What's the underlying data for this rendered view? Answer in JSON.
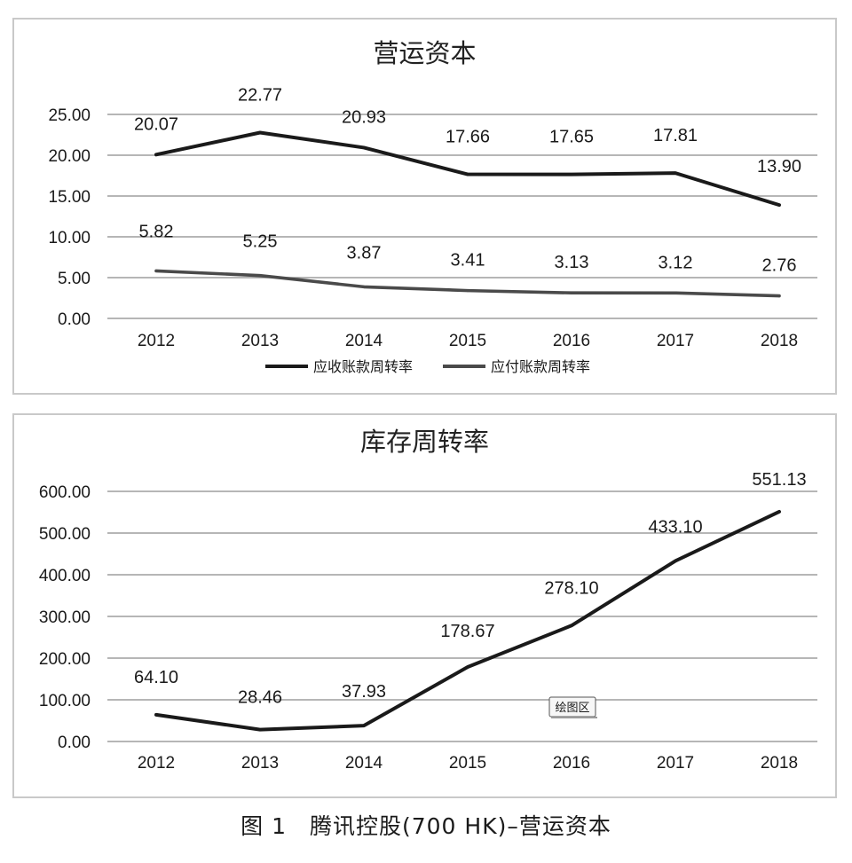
{
  "chart_data": [
    {
      "type": "line",
      "title": "营运资本",
      "categories": [
        "2012",
        "2013",
        "2014",
        "2015",
        "2016",
        "2017",
        "2018"
      ],
      "ylim": [
        0,
        25
      ],
      "yticks": [
        "0.00",
        "5.00",
        "10.00",
        "15.00",
        "20.00",
        "25.00"
      ],
      "grid": true,
      "legend_position": "bottom",
      "series": [
        {
          "name": "应收账款周转率",
          "color": "#1a1a1a",
          "values": [
            20.07,
            22.77,
            20.93,
            17.66,
            17.65,
            17.81,
            13.9
          ],
          "labels": [
            "20.07",
            "22.77",
            "20.93",
            "17.66",
            "17.65",
            "17.81",
            "13.90"
          ]
        },
        {
          "name": "应付账款周转率",
          "color": "#4a4a4a",
          "values": [
            5.82,
            5.25,
            3.87,
            3.41,
            3.13,
            3.12,
            2.76
          ],
          "labels": [
            "5.82",
            "5.25",
            "3.87",
            "3.41",
            "3.13",
            "3.12",
            "2.76"
          ]
        }
      ]
    },
    {
      "type": "line",
      "title": "库存周转率",
      "categories": [
        "2012",
        "2013",
        "2014",
        "2015",
        "2016",
        "2017",
        "2018"
      ],
      "ylim": [
        0,
        600
      ],
      "yticks": [
        "0.00",
        "100.00",
        "200.00",
        "300.00",
        "400.00",
        "500.00",
        "600.00"
      ],
      "grid": true,
      "annotation": "绘图区",
      "series": [
        {
          "color": "#1a1a1a",
          "values": [
            64.1,
            28.46,
            37.93,
            178.67,
            278.1,
            433.1,
            551.13
          ],
          "labels": [
            "64.10",
            "28.46",
            "37.93",
            "178.67",
            "278.10",
            "433.10",
            "551.13"
          ]
        }
      ]
    }
  ],
  "caption": "图 1　腾讯控股(700 HK)–营运资本"
}
